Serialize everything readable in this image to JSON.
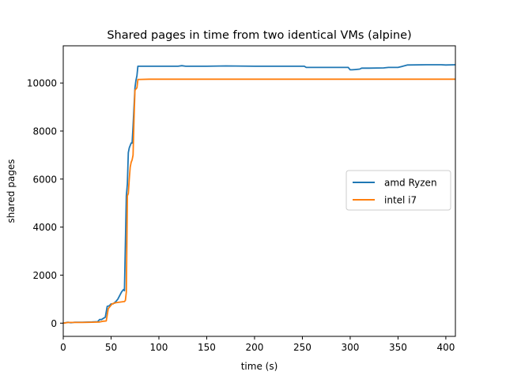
{
  "chart_data": {
    "type": "line",
    "title": "Shared pages in time from two identical VMs (alpine)",
    "xlabel": "time (s)",
    "ylabel": "shared pages",
    "xlim": [
      0,
      410
    ],
    "ylim": [
      -550,
      11550
    ],
    "xticks": [
      0,
      50,
      100,
      150,
      200,
      250,
      300,
      350,
      400
    ],
    "yticks": [
      0,
      2000,
      4000,
      6000,
      8000,
      10000
    ],
    "grid": false,
    "legend_position": "center right",
    "series": [
      {
        "name": "amd Ryzen",
        "color": "#1f77b4",
        "x": [
          0,
          5,
          8,
          12,
          20,
          30,
          36,
          38,
          40,
          42,
          44,
          46,
          48,
          50,
          52,
          55,
          57,
          59,
          61,
          63,
          64,
          66,
          67,
          68,
          69,
          70,
          71,
          72,
          73,
          74,
          75,
          76,
          77,
          78,
          79,
          80,
          100,
          120,
          124,
          128,
          150,
          170,
          200,
          230,
          252,
          254,
          280,
          298,
          300,
          302,
          305,
          310,
          312,
          320,
          335,
          340,
          350,
          355,
          360,
          380,
          395,
          400,
          410
        ],
        "y": [
          0,
          40,
          20,
          40,
          40,
          50,
          60,
          150,
          150,
          200,
          250,
          700,
          720,
          800,
          800,
          900,
          1000,
          1150,
          1300,
          1400,
          1350,
          5300,
          5800,
          7100,
          7300,
          7400,
          7500,
          7500,
          8200,
          9000,
          9800,
          10100,
          10300,
          10700,
          10700,
          10700,
          10700,
          10700,
          10720,
          10700,
          10700,
          10710,
          10700,
          10700,
          10700,
          10650,
          10650,
          10650,
          10550,
          10550,
          10560,
          10580,
          10620,
          10620,
          10630,
          10650,
          10650,
          10700,
          10750,
          10760,
          10760,
          10750,
          10760
        ]
      },
      {
        "name": "intel i7",
        "color": "#ff7f0e",
        "x": [
          0,
          5,
          8,
          12,
          20,
          30,
          38,
          42,
          45,
          47,
          49,
          51,
          55,
          60,
          64,
          65,
          66,
          67,
          68,
          69,
          70,
          71,
          72,
          73,
          74,
          75,
          76,
          77,
          78,
          80,
          90,
          100,
          130,
          170,
          200,
          250,
          300,
          350,
          400,
          410
        ],
        "y": [
          0,
          30,
          30,
          30,
          30,
          40,
          50,
          80,
          90,
          600,
          700,
          800,
          850,
          880,
          900,
          950,
          1300,
          5300,
          5400,
          6000,
          6500,
          6700,
          6800,
          7000,
          8500,
          9700,
          9750,
          9800,
          10150,
          10150,
          10160,
          10160,
          10160,
          10160,
          10160,
          10160,
          10160,
          10160,
          10160,
          10160
        ]
      }
    ]
  }
}
